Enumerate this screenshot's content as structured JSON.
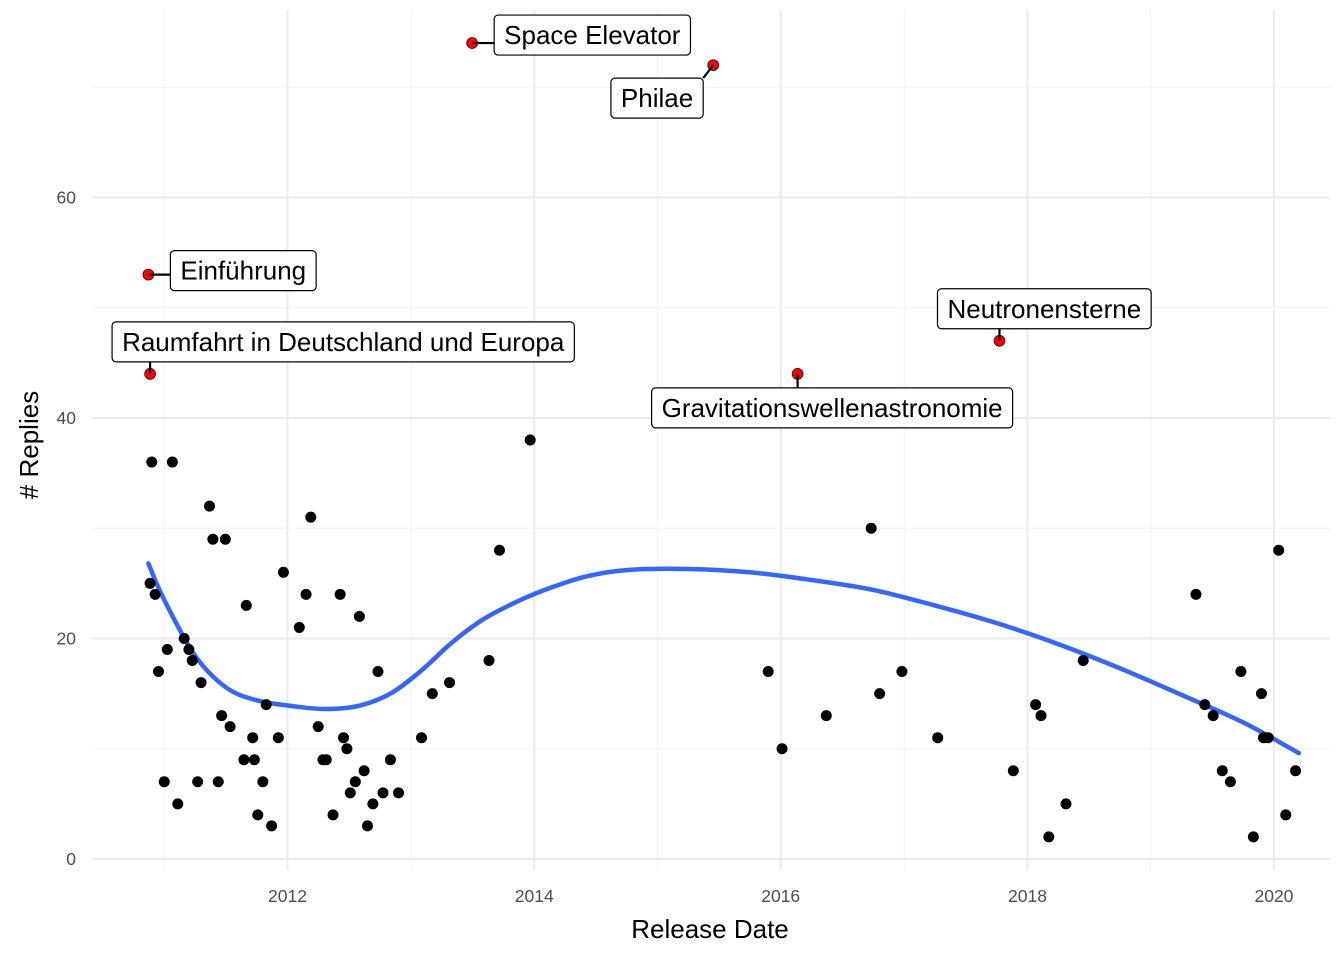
{
  "chart_data": {
    "type": "scatter",
    "title": "",
    "xlabel": "Release Date",
    "ylabel": "# Replies",
    "xlim": [
      "2010-06-01",
      "2020-06-15"
    ],
    "ylim": [
      -1,
      77
    ],
    "x_ticks": [
      "2012",
      "2014",
      "2016",
      "2018",
      "2020"
    ],
    "y_ticks": [
      "0",
      "20",
      "40",
      "60"
    ],
    "grid": true,
    "colors": {
      "point": "#000000",
      "highlight": "#ff0000",
      "smooth": "#3366ff"
    },
    "points": [
      {
        "x": "2010-11-20",
        "y": 25
      },
      {
        "x": "2010-11-25",
        "y": 36
      },
      {
        "x": "2010-12-05",
        "y": 24
      },
      {
        "x": "2010-12-15",
        "y": 17
      },
      {
        "x": "2011-01-01",
        "y": 7
      },
      {
        "x": "2011-01-10",
        "y": 19
      },
      {
        "x": "2011-01-25",
        "y": 36
      },
      {
        "x": "2011-02-10",
        "y": 5
      },
      {
        "x": "2011-03-01",
        "y": 20
      },
      {
        "x": "2011-03-15",
        "y": 19
      },
      {
        "x": "2011-03-25",
        "y": 18
      },
      {
        "x": "2011-04-10",
        "y": 7
      },
      {
        "x": "2011-04-20",
        "y": 16
      },
      {
        "x": "2011-05-15",
        "y": 32
      },
      {
        "x": "2011-05-25",
        "y": 29
      },
      {
        "x": "2011-06-10",
        "y": 7
      },
      {
        "x": "2011-06-20",
        "y": 13
      },
      {
        "x": "2011-07-01",
        "y": 29
      },
      {
        "x": "2011-07-15",
        "y": 12
      },
      {
        "x": "2011-08-25",
        "y": 9
      },
      {
        "x": "2011-09-01",
        "y": 23
      },
      {
        "x": "2011-09-20",
        "y": 11
      },
      {
        "x": "2011-09-25",
        "y": 9
      },
      {
        "x": "2011-10-05",
        "y": 4
      },
      {
        "x": "2011-10-20",
        "y": 7
      },
      {
        "x": "2011-10-30",
        "y": 14
      },
      {
        "x": "2011-11-15",
        "y": 3
      },
      {
        "x": "2011-12-05",
        "y": 11
      },
      {
        "x": "2011-12-20",
        "y": 26
      },
      {
        "x": "2012-02-05",
        "y": 21
      },
      {
        "x": "2012-02-25",
        "y": 24
      },
      {
        "x": "2012-03-10",
        "y": 31
      },
      {
        "x": "2012-04-01",
        "y": 12
      },
      {
        "x": "2012-04-15",
        "y": 9
      },
      {
        "x": "2012-04-25",
        "y": 9
      },
      {
        "x": "2012-05-15",
        "y": 4
      },
      {
        "x": "2012-06-05",
        "y": 24
      },
      {
        "x": "2012-06-15",
        "y": 11
      },
      {
        "x": "2012-06-25",
        "y": 10
      },
      {
        "x": "2012-07-05",
        "y": 6
      },
      {
        "x": "2012-07-20",
        "y": 7
      },
      {
        "x": "2012-08-01",
        "y": 22
      },
      {
        "x": "2012-08-15",
        "y": 8
      },
      {
        "x": "2012-08-25",
        "y": 3
      },
      {
        "x": "2012-09-10",
        "y": 5
      },
      {
        "x": "2012-09-25",
        "y": 17
      },
      {
        "x": "2012-10-10",
        "y": 6
      },
      {
        "x": "2012-11-01",
        "y": 9
      },
      {
        "x": "2012-11-25",
        "y": 6
      },
      {
        "x": "2013-02-01",
        "y": 11
      },
      {
        "x": "2013-03-05",
        "y": 15
      },
      {
        "x": "2013-04-25",
        "y": 16
      },
      {
        "x": "2013-08-20",
        "y": 18
      },
      {
        "x": "2013-09-20",
        "y": 28
      },
      {
        "x": "2013-12-20",
        "y": 38
      },
      {
        "x": "2015-11-25",
        "y": 17
      },
      {
        "x": "2016-01-05",
        "y": 10
      },
      {
        "x": "2016-05-15",
        "y": 13
      },
      {
        "x": "2016-09-25",
        "y": 30
      },
      {
        "x": "2016-10-20",
        "y": 15
      },
      {
        "x": "2016-12-25",
        "y": 17
      },
      {
        "x": "2017-04-10",
        "y": 11
      },
      {
        "x": "2017-11-20",
        "y": 8
      },
      {
        "x": "2018-01-25",
        "y": 14
      },
      {
        "x": "2018-02-10",
        "y": 13
      },
      {
        "x": "2018-03-05",
        "y": 2
      },
      {
        "x": "2018-04-25",
        "y": 5
      },
      {
        "x": "2018-06-15",
        "y": 18
      },
      {
        "x": "2019-05-15",
        "y": 24
      },
      {
        "x": "2019-06-10",
        "y": 14
      },
      {
        "x": "2019-07-05",
        "y": 13
      },
      {
        "x": "2019-08-01",
        "y": 8
      },
      {
        "x": "2019-08-25",
        "y": 7
      },
      {
        "x": "2019-09-25",
        "y": 17
      },
      {
        "x": "2019-11-01",
        "y": 2
      },
      {
        "x": "2019-11-25",
        "y": 15
      },
      {
        "x": "2019-12-01",
        "y": 11
      },
      {
        "x": "2019-12-15",
        "y": 11
      },
      {
        "x": "2020-01-15",
        "y": 28
      },
      {
        "x": "2020-02-05",
        "y": 4
      },
      {
        "x": "2020-03-05",
        "y": 8
      }
    ],
    "highlights": [
      {
        "label": "Space Elevator",
        "x": "2013-07-01",
        "y": 74
      },
      {
        "label": "Philae",
        "x": "2015-06-15",
        "y": 72
      },
      {
        "label": "Einführung",
        "x": "2010-11-15",
        "y": 53
      },
      {
        "label": "Raumfahrt in Deutschland und Europa",
        "x": "2010-11-20",
        "y": 44
      },
      {
        "label": "Neutronensterne",
        "x": "2017-10-10",
        "y": 47
      },
      {
        "label": "Gravitationswellenastronomie",
        "x": "2016-02-20",
        "y": 44
      }
    ],
    "smooth": [
      {
        "x": "2010-11-15",
        "y": 26.8
      },
      {
        "x": "2011-01-01",
        "y": 23.5
      },
      {
        "x": "2011-04-01",
        "y": 18.5
      },
      {
        "x": "2011-07-01",
        "y": 15.6
      },
      {
        "x": "2011-10-01",
        "y": 14.4
      },
      {
        "x": "2012-02-01",
        "y": 13.8
      },
      {
        "x": "2012-05-01",
        "y": 13.6
      },
      {
        "x": "2012-08-01",
        "y": 13.9
      },
      {
        "x": "2012-11-01",
        "y": 15.0
      },
      {
        "x": "2013-02-01",
        "y": 17.1
      },
      {
        "x": "2013-05-01",
        "y": 19.6
      },
      {
        "x": "2013-08-01",
        "y": 21.7
      },
      {
        "x": "2013-11-01",
        "y": 23.2
      },
      {
        "x": "2014-02-01",
        "y": 24.4
      },
      {
        "x": "2014-06-01",
        "y": 25.6
      },
      {
        "x": "2014-10-01",
        "y": 26.2
      },
      {
        "x": "2015-04-01",
        "y": 26.3
      },
      {
        "x": "2015-10-01",
        "y": 26.0
      },
      {
        "x": "2016-04-01",
        "y": 25.3
      },
      {
        "x": "2016-10-01",
        "y": 24.4
      },
      {
        "x": "2017-04-01",
        "y": 23.0
      },
      {
        "x": "2017-10-01",
        "y": 21.4
      },
      {
        "x": "2018-04-01",
        "y": 19.5
      },
      {
        "x": "2018-10-01",
        "y": 17.3
      },
      {
        "x": "2019-04-01",
        "y": 14.9
      },
      {
        "x": "2019-10-01",
        "y": 12.4
      },
      {
        "x": "2020-03-15",
        "y": 9.6
      }
    ]
  }
}
